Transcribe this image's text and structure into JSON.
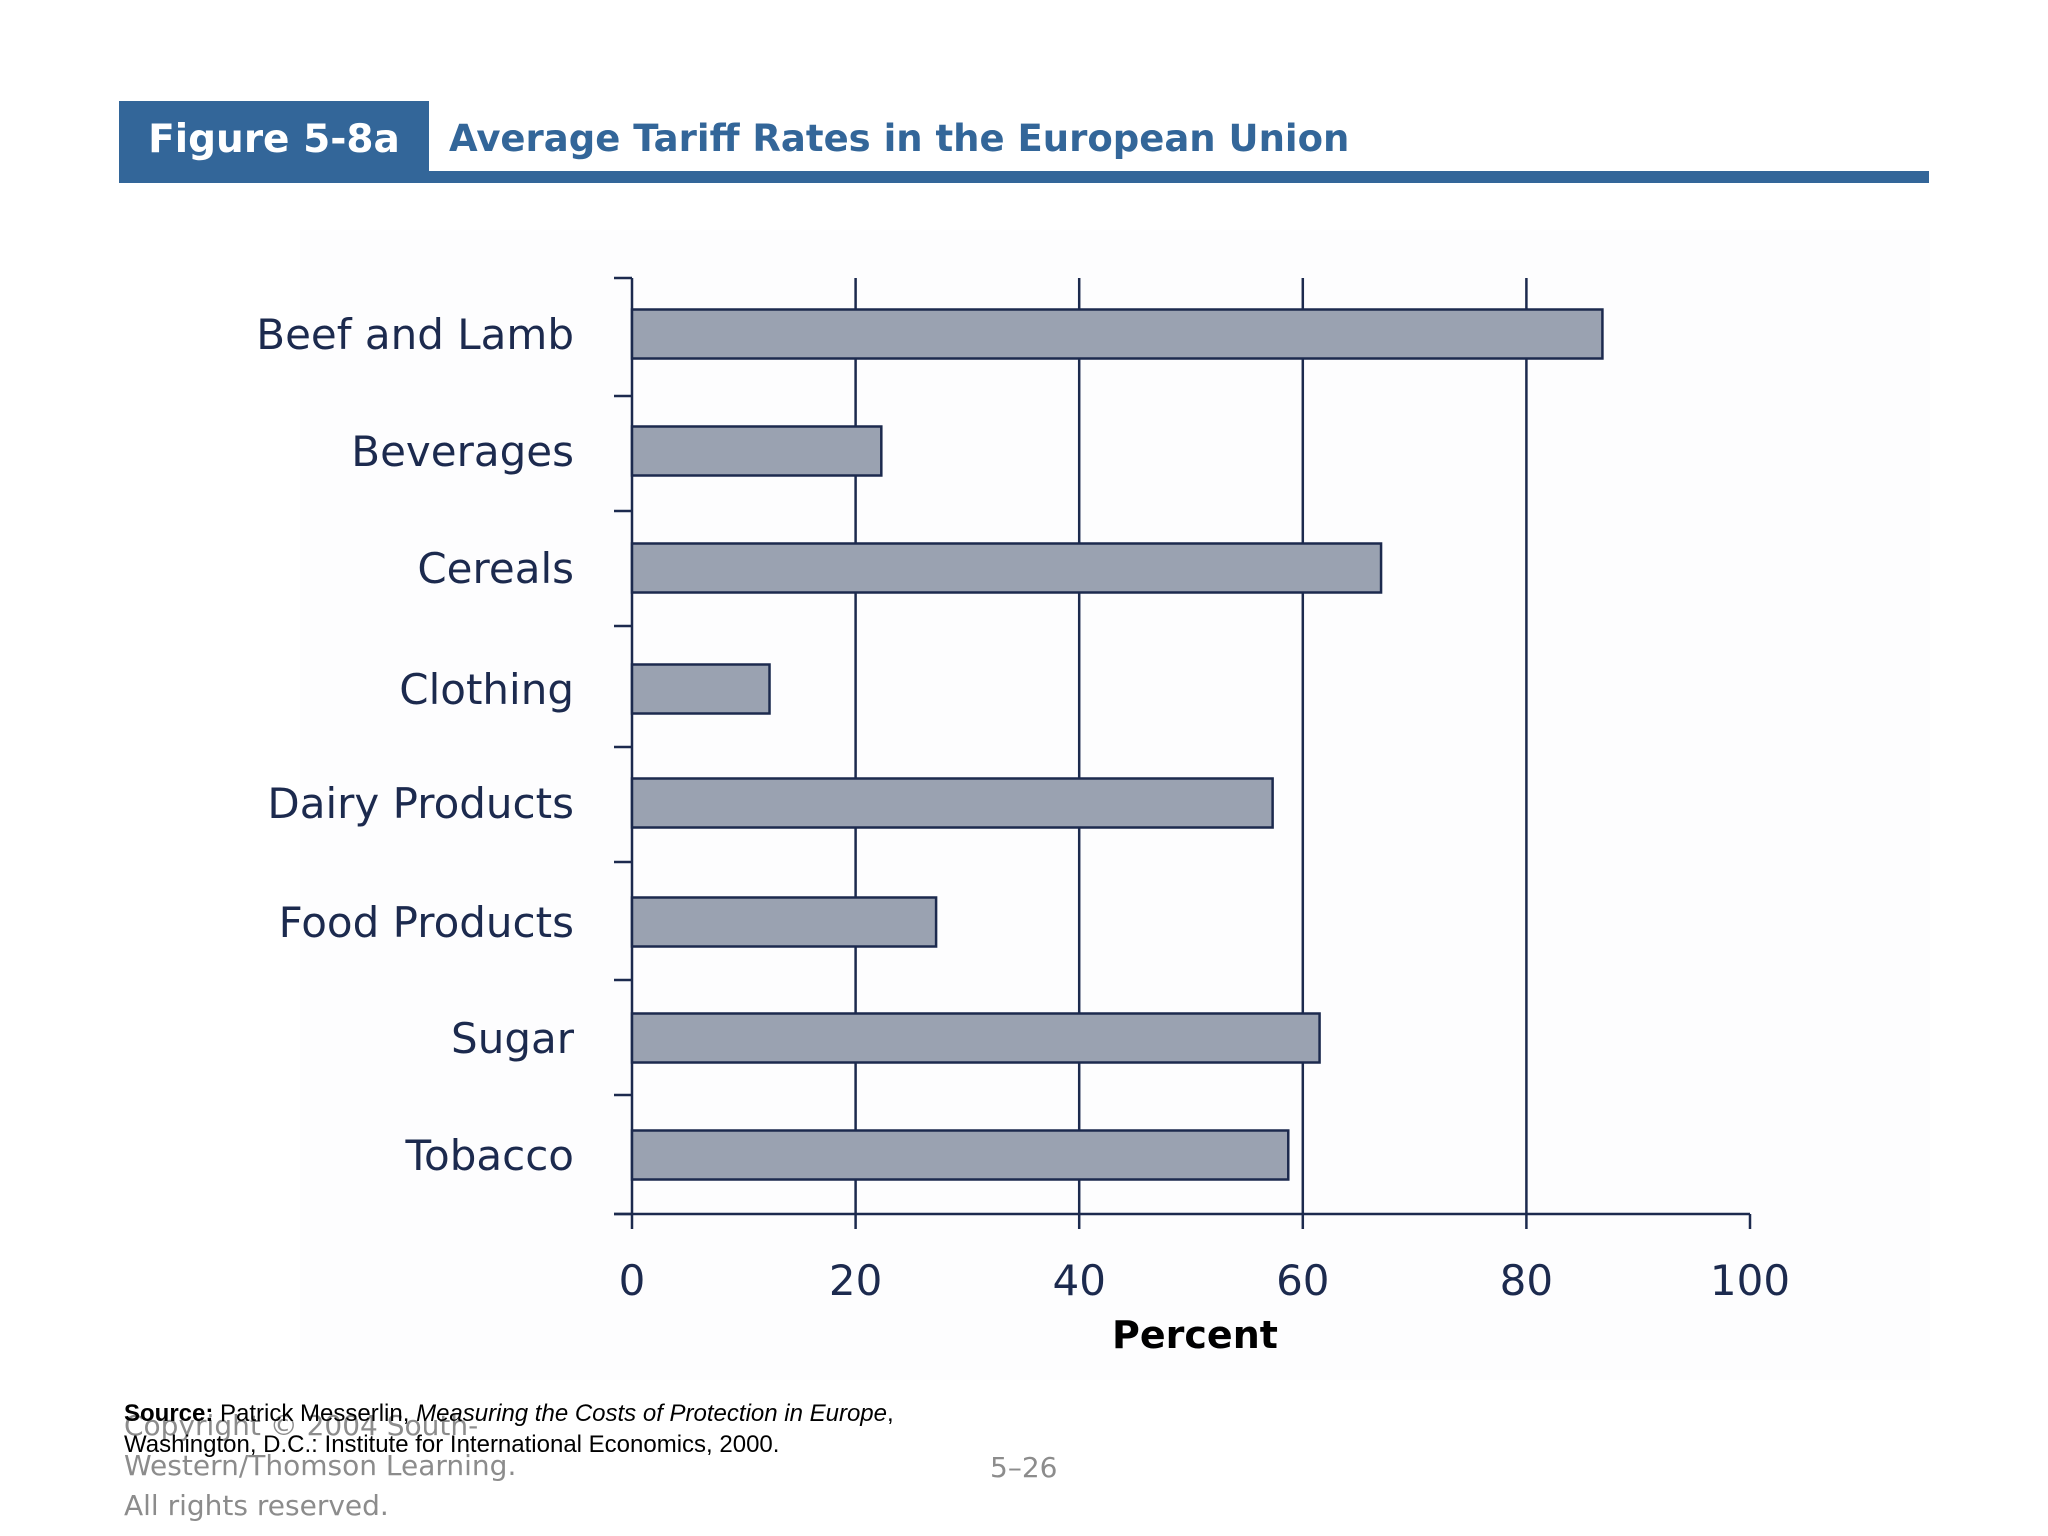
{
  "figure": {
    "label": "Figure 5-8a",
    "title": "Average Tariff Rates in the European Union"
  },
  "colors": {
    "brand": "#336699",
    "bar_fill": "#9aa2b1",
    "bar_stroke": "#1c2a4e",
    "axis": "#1c2a4e",
    "text": "#1c2a4e"
  },
  "chart_data": {
    "type": "bar",
    "orientation": "horizontal",
    "categories": [
      "Beef and Lamb",
      "Beverages",
      "Cereals",
      "Clothing",
      "Dairy Products",
      "Food Products",
      "Sugar",
      "Tobacco"
    ],
    "values": [
      86.8,
      22.3,
      67,
      12.3,
      57.3,
      27.2,
      61.5,
      58.7
    ],
    "xlabel": "Percent",
    "ylabel": "",
    "xlim": [
      0,
      100
    ],
    "xticks": [
      "0",
      "20",
      "40",
      "60",
      "80",
      "100"
    ],
    "grid": "vertical lines at 20, 40, 60, 80",
    "legend": "none"
  },
  "footer": {
    "source_label": "Source:",
    "source_author": "Patrick Messerlin, ",
    "source_book": "Measuring the Costs of Protection in Europe",
    "source_comma": ",",
    "source_line2": "Washington, D.C.: Institute for International Economics, 2000.",
    "copyright": "Copyright © 2004 South-\nWestern/Thomson Learning.\nAll rights reserved.",
    "page_number": "5–26"
  }
}
